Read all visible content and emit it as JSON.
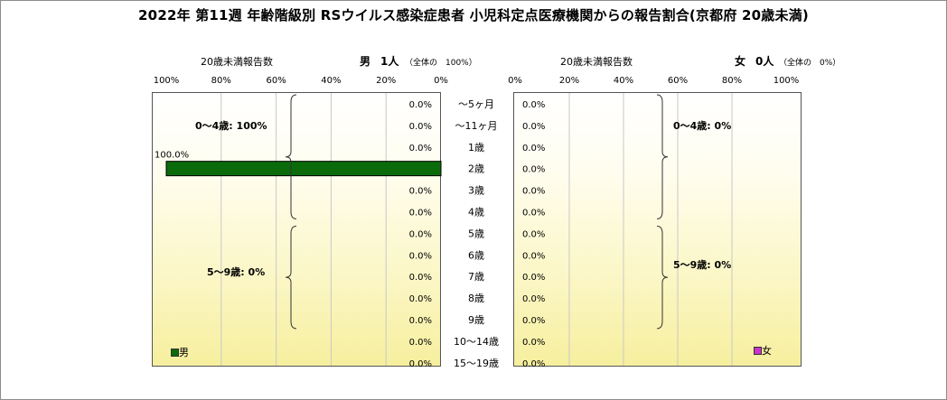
{
  "title": "2022年 第11週 年齢階級別 RSウイルス感染症患者 小児科定点医療機関からの報告割合(京都府 20歳未満)",
  "colors": {
    "male_bar": "#0b6b0b",
    "female_bar": "#cc33cc",
    "plot_bg_top": "#ffffff",
    "plot_bg_bottom": "#f6ef9e"
  },
  "male": {
    "axis_title": "20歳未満報告数",
    "header_sex": "男",
    "header_count": "1人",
    "header_total": "（全体の　100%）",
    "ticks": [
      "100%",
      "80%",
      "60%",
      "40%",
      "20%",
      "0%"
    ],
    "group_labels": [
      "0～4歳: 100%",
      "5～9歳: 0%"
    ],
    "legend": "男"
  },
  "female": {
    "axis_title": "20歳未満報告数",
    "header_sex": "女",
    "header_count": "0人",
    "header_total": "（全体の　0%）",
    "ticks": [
      "0%",
      "20%",
      "40%",
      "60%",
      "80%",
      "100%"
    ],
    "group_labels": [
      "0～4歳: 0%",
      "5～9歳: 0%"
    ],
    "legend": "女"
  },
  "chart_data": {
    "type": "bar",
    "orientation": "horizontal",
    "title": "2022年 第11週 年齢階級別 RSウイルス感染症患者 小児科定点医療機関からの報告割合(京都府 20歳未満)",
    "categories": [
      "～5ヶ月",
      "～11ヶ月",
      "1歳",
      "2歳",
      "3歳",
      "4歳",
      "5歳",
      "6歳",
      "7歳",
      "8歳",
      "9歳",
      "10～14歳",
      "15～19歳"
    ],
    "xlim": [
      0,
      100
    ],
    "grid": true,
    "series": [
      {
        "name": "男",
        "values": [
          0,
          0,
          0,
          100,
          0,
          0,
          0,
          0,
          0,
          0,
          0,
          0,
          0
        ],
        "labels": [
          "0.0%",
          "0.0%",
          "0.0%",
          "100.0%",
          "0.0%",
          "0.0%",
          "0.0%",
          "0.0%",
          "0.0%",
          "0.0%",
          "0.0%",
          "0.0%",
          "0.0%"
        ]
      },
      {
        "name": "女",
        "values": [
          0,
          0,
          0,
          0,
          0,
          0,
          0,
          0,
          0,
          0,
          0,
          0,
          0
        ],
        "labels": [
          "0.0%",
          "0.0%",
          "0.0%",
          "0.0%",
          "0.0%",
          "0.0%",
          "0.0%",
          "0.0%",
          "0.0%",
          "0.0%",
          "0.0%",
          "0.0%",
          "0.0%"
        ]
      }
    ]
  }
}
